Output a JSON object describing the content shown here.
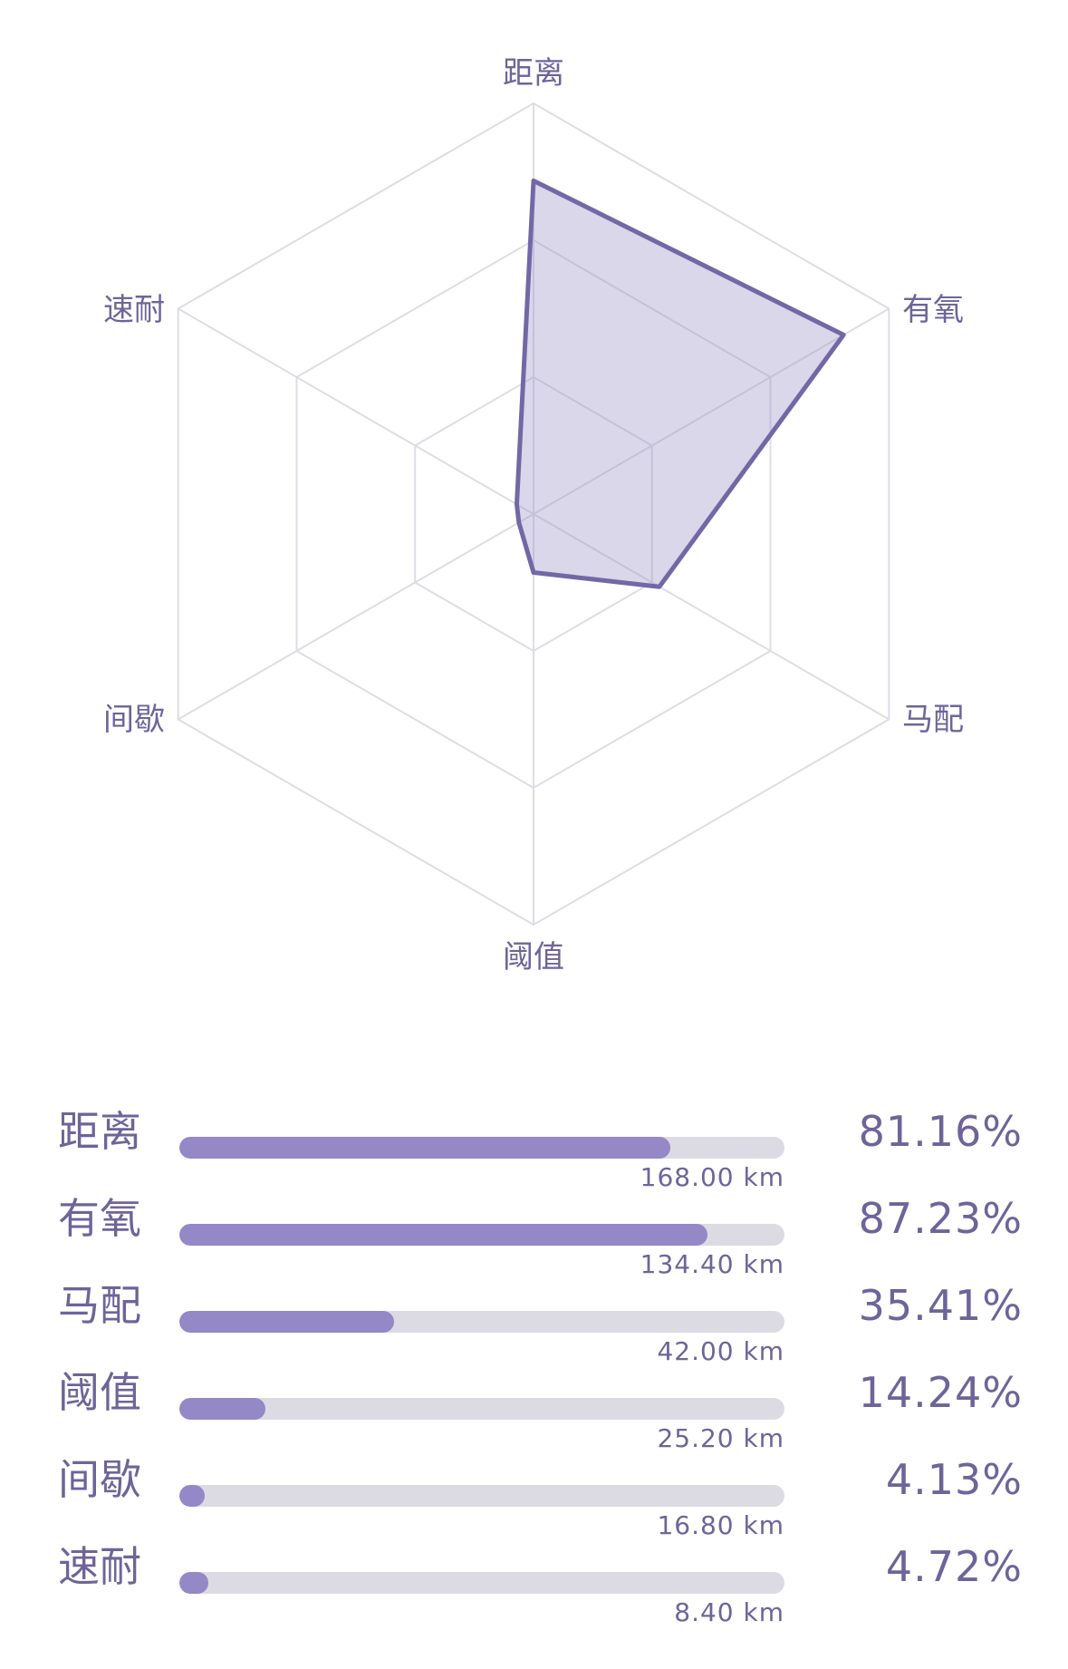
{
  "chart_data": {
    "type": "radar",
    "categories": [
      "距离",
      "有氧",
      "马配",
      "阈值",
      "间歇",
      "速耐"
    ],
    "values": [
      0.8116,
      0.8723,
      0.3541,
      0.1424,
      0.0413,
      0.0472
    ],
    "rmax": 1,
    "grid_levels": 3,
    "colors": {
      "fill": "#9c96c4",
      "stroke": "#7467a6",
      "grid": "#dedde6",
      "label": "#6e6499",
      "bar_fill": "#9488c7",
      "bar_track": "#dcdbe3"
    }
  },
  "breakdown": [
    {
      "label": "距离",
      "percent_text": "81.16%",
      "distance_text": "168.00 km",
      "fill_fraction": 0.8116
    },
    {
      "label": "有氧",
      "percent_text": "87.23%",
      "distance_text": "134.40 km",
      "fill_fraction": 0.8723
    },
    {
      "label": "马配",
      "percent_text": "35.41%",
      "distance_text": "42.00 km",
      "fill_fraction": 0.3541
    },
    {
      "label": "阈值",
      "percent_text": "14.24%",
      "distance_text": "25.20 km",
      "fill_fraction": 0.1424
    },
    {
      "label": "间歇",
      "percent_text": "4.13%",
      "distance_text": "16.80 km",
      "fill_fraction": 0.0413
    },
    {
      "label": "速耐",
      "percent_text": "4.72%",
      "distance_text": "8.40 km",
      "fill_fraction": 0.0472
    }
  ]
}
